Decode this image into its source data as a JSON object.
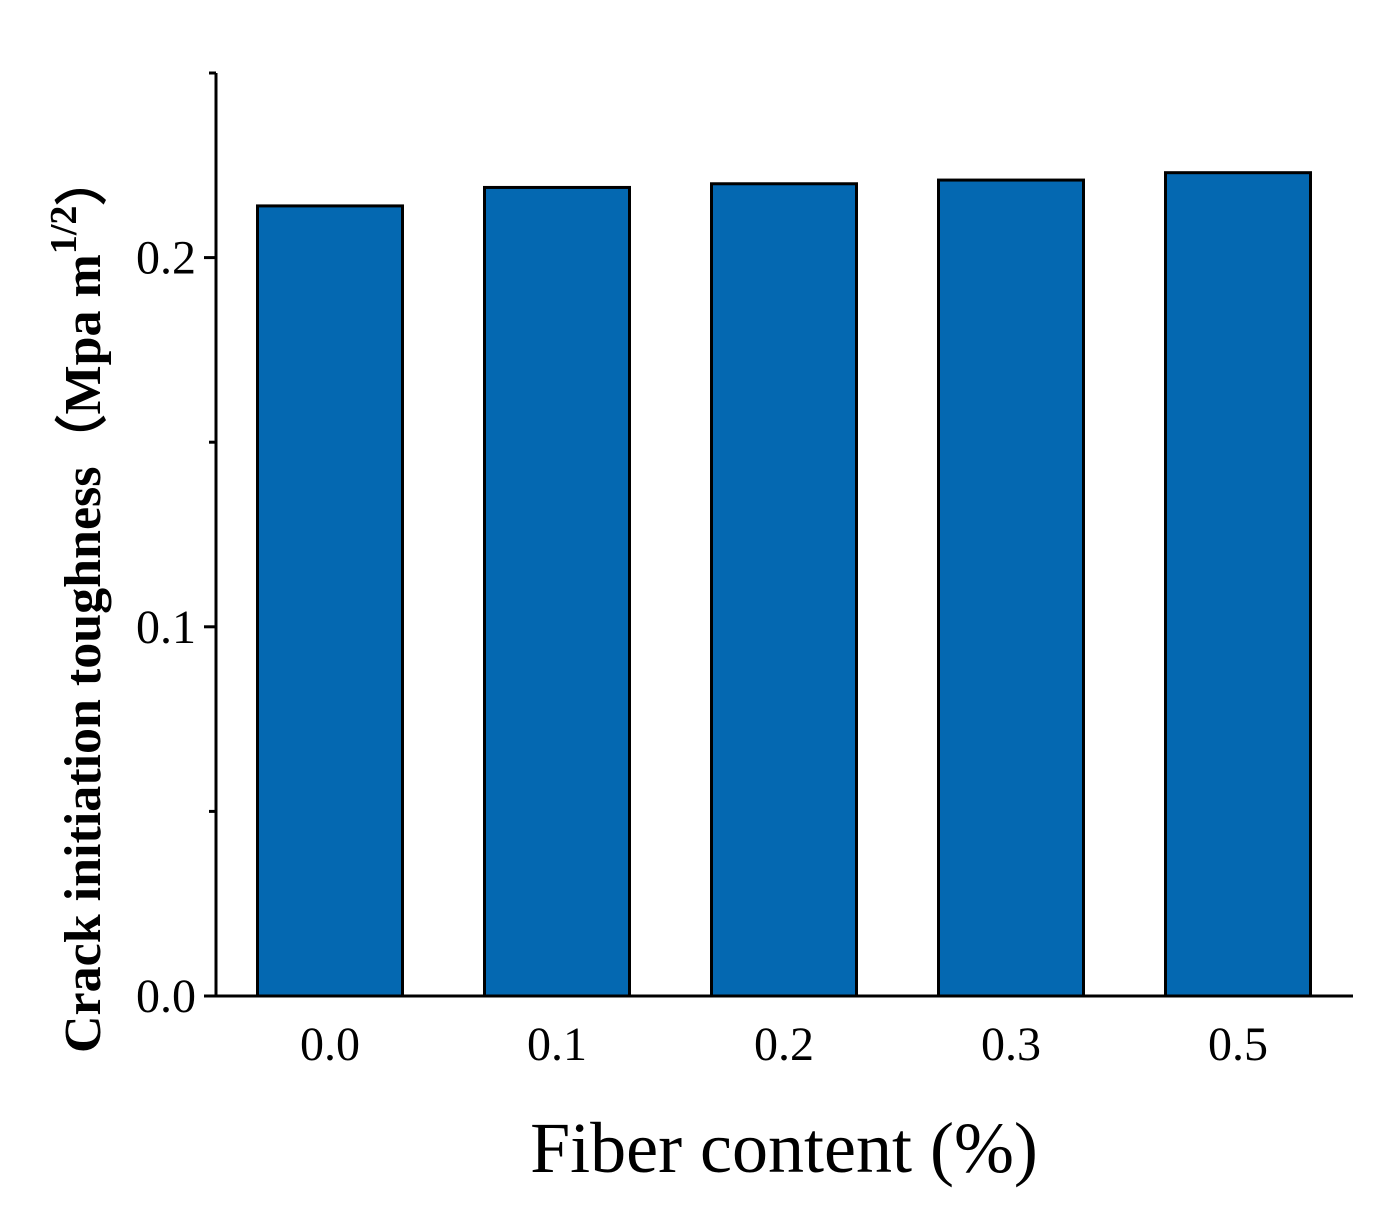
{
  "chart_data": {
    "type": "bar",
    "categories": [
      "0.0",
      "0.1",
      "0.2",
      "0.3",
      "0.5"
    ],
    "values": [
      0.214,
      0.219,
      0.22,
      0.221,
      0.223
    ],
    "title": "",
    "xlabel": "Fiber content (%)",
    "ylabel": "Crack initiation toughness（Mpa m",
    "ylabel_superscript": "1/2",
    "ylabel_close": "）",
    "ylim": [
      0.0,
      0.25
    ],
    "yticks": [
      "0.0",
      "0.1",
      "0.2"
    ],
    "ytick_values": [
      0.0,
      0.1,
      0.2
    ],
    "minor_ytick_values": [
      0.05,
      0.15
    ],
    "grid": false,
    "legend": "none",
    "bar_color": "#0468b1",
    "bar_edge_color": "#000000"
  }
}
